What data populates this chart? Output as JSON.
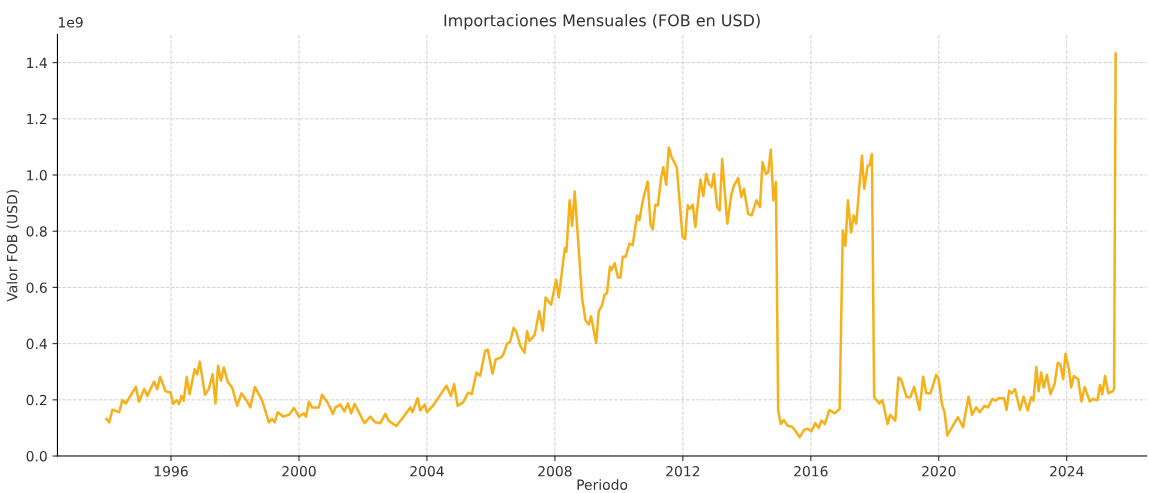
{
  "chart_data": {
    "type": "line",
    "title": "Importaciones Mensuales (FOB en USD)",
    "xlabel": "Periodo",
    "ylabel": "Valor FOB (USD)",
    "annotations": [
      "1e9"
    ],
    "x": [
      1993.98,
      1994.07,
      1994.17,
      1994.38,
      1994.48,
      1994.59,
      1994.9,
      1995.0,
      1995.16,
      1995.26,
      1995.47,
      1995.57,
      1995.66,
      1995.83,
      1995.99,
      1996.06,
      1996.17,
      1996.25,
      1996.33,
      1996.4,
      1996.49,
      1996.58,
      1996.74,
      1996.82,
      1996.9,
      1997.06,
      1997.18,
      1997.3,
      1997.39,
      1997.47,
      1997.56,
      1997.65,
      1997.78,
      1997.91,
      1998.07,
      1998.2,
      1998.33,
      1998.48,
      1998.62,
      1998.85,
      1999.06,
      1999.16,
      1999.24,
      1999.34,
      1999.51,
      1999.69,
      1999.84,
      2000.0,
      2000.15,
      2000.22,
      2000.31,
      2000.41,
      2000.62,
      2000.72,
      2000.91,
      2001.06,
      2001.14,
      2001.29,
      2001.42,
      2001.53,
      2001.63,
      2001.74,
      2001.87,
      2002.05,
      2002.23,
      2002.38,
      2002.54,
      2002.7,
      2002.8,
      2003.04,
      2003.16,
      2003.27,
      2003.48,
      2003.55,
      2003.71,
      2003.79,
      2003.93,
      2004.0,
      2004.19,
      2004.45,
      2004.61,
      2004.75,
      2004.85,
      2004.96,
      2005.13,
      2005.29,
      2005.4,
      2005.55,
      2005.66,
      2005.82,
      2005.9,
      2006.05,
      2006.15,
      2006.31,
      2006.39,
      2006.5,
      2006.6,
      2006.71,
      2006.79,
      2006.92,
      2007.05,
      2007.13,
      2007.21,
      2007.37,
      2007.51,
      2007.62,
      2007.71,
      2007.88,
      2008.04,
      2008.12,
      2008.31,
      2008.36,
      2008.46,
      2008.54,
      2008.62,
      2008.85,
      2008.96,
      2009.06,
      2009.13,
      2009.29,
      2009.37,
      2009.48,
      2009.55,
      2009.63,
      2009.72,
      2009.77,
      2009.87,
      2009.97,
      2010.05,
      2010.12,
      2010.21,
      2010.33,
      2010.43,
      2010.57,
      2010.64,
      2010.74,
      2010.9,
      2010.99,
      2011.06,
      2011.14,
      2011.22,
      2011.32,
      2011.39,
      2011.48,
      2011.56,
      2011.65,
      2011.81,
      2011.99,
      2012.07,
      2012.15,
      2012.22,
      2012.31,
      2012.39,
      2012.55,
      2012.64,
      2012.73,
      2012.81,
      2012.9,
      2012.97,
      2013.07,
      2013.15,
      2013.23,
      2013.39,
      2013.52,
      2013.6,
      2013.73,
      2013.83,
      2013.91,
      2014.04,
      2014.15,
      2014.3,
      2014.41,
      2014.49,
      2014.6,
      2014.67,
      2014.75,
      2014.83,
      2014.91,
      2014.98,
      2015.06,
      2015.16,
      2015.27,
      2015.41,
      2015.51,
      2015.65,
      2015.79,
      2015.9,
      2016.02,
      2016.14,
      2016.25,
      2016.33,
      2016.44,
      2016.58,
      2016.74,
      2016.9,
      2017.0,
      2017.08,
      2017.16,
      2017.26,
      2017.34,
      2017.42,
      2017.6,
      2017.67,
      2017.78,
      2017.84,
      2017.91,
      2017.98,
      2018.14,
      2018.24,
      2018.4,
      2018.48,
      2018.64,
      2018.74,
      2018.82,
      2019.0,
      2019.11,
      2019.23,
      2019.4,
      2019.51,
      2019.61,
      2019.74,
      2019.92,
      2020.0,
      2020.1,
      2020.18,
      2020.27,
      2020.44,
      2020.6,
      2020.76,
      2020.93,
      2021.04,
      2021.17,
      2021.28,
      2021.43,
      2021.54,
      2021.67,
      2021.77,
      2021.88,
      2022.04,
      2022.12,
      2022.2,
      2022.28,
      2022.38,
      2022.54,
      2022.65,
      2022.78,
      2022.89,
      2022.96,
      2023.05,
      2023.12,
      2023.2,
      2023.28,
      2023.38,
      2023.49,
      2023.62,
      2023.72,
      2023.8,
      2023.89,
      2023.96,
      2024.07,
      2024.14,
      2024.22,
      2024.36,
      2024.46,
      2024.56,
      2024.72,
      2024.82,
      2024.96,
      2025.04,
      2025.11,
      2025.2,
      2025.3,
      2025.43,
      2025.48,
      2025.53
    ],
    "series": [
      {
        "color": "#f5b01a",
        "values": [
          0.132,
          0.12,
          0.165,
          0.156,
          0.199,
          0.187,
          0.246,
          0.193,
          0.238,
          0.214,
          0.265,
          0.238,
          0.282,
          0.23,
          0.226,
          0.185,
          0.199,
          0.185,
          0.214,
          0.197,
          0.282,
          0.22,
          0.309,
          0.291,
          0.336,
          0.218,
          0.238,
          0.291,
          0.187,
          0.321,
          0.268,
          0.315,
          0.262,
          0.244,
          0.179,
          0.223,
          0.203,
          0.173,
          0.246,
          0.197,
          0.12,
          0.132,
          0.12,
          0.156,
          0.14,
          0.147,
          0.171,
          0.14,
          0.152,
          0.14,
          0.193,
          0.173,
          0.173,
          0.218,
          0.187,
          0.15,
          0.173,
          0.183,
          0.159,
          0.187,
          0.152,
          0.185,
          0.156,
          0.117,
          0.14,
          0.12,
          0.117,
          0.15,
          0.126,
          0.107,
          0.124,
          0.14,
          0.173,
          0.156,
          0.206,
          0.162,
          0.183,
          0.156,
          0.179,
          0.223,
          0.25,
          0.214,
          0.256,
          0.179,
          0.191,
          0.226,
          0.22,
          0.297,
          0.285,
          0.374,
          0.379,
          0.293,
          0.344,
          0.35,
          0.362,
          0.399,
          0.406,
          0.456,
          0.444,
          0.391,
          0.368,
          0.444,
          0.409,
          0.432,
          0.515,
          0.446,
          0.564,
          0.538,
          0.627,
          0.564,
          0.739,
          0.727,
          0.91,
          0.819,
          0.941,
          0.562,
          0.482,
          0.468,
          0.497,
          0.403,
          0.515,
          0.538,
          0.574,
          0.58,
          0.674,
          0.662,
          0.686,
          0.635,
          0.635,
          0.709,
          0.709,
          0.756,
          0.75,
          0.856,
          0.839,
          0.904,
          0.977,
          0.824,
          0.807,
          0.894,
          0.892,
          0.989,
          1.028,
          0.965,
          1.098,
          1.063,
          1.028,
          0.78,
          0.772,
          0.892,
          0.88,
          0.894,
          0.815,
          0.984,
          0.925,
          1.004,
          0.969,
          0.957,
          1.004,
          0.886,
          0.874,
          1.057,
          0.827,
          0.933,
          0.963,
          0.989,
          0.922,
          0.951,
          0.862,
          0.856,
          0.91,
          0.886,
          1.045,
          1.004,
          1.01,
          1.09,
          0.91,
          0.975,
          0.162,
          0.114,
          0.128,
          0.108,
          0.105,
          0.091,
          0.067,
          0.093,
          0.097,
          0.088,
          0.117,
          0.1,
          0.126,
          0.114,
          0.164,
          0.152,
          0.167,
          0.803,
          0.748,
          0.91,
          0.795,
          0.856,
          0.827,
          1.069,
          0.951,
          1.033,
          1.036,
          1.075,
          0.209,
          0.187,
          0.199,
          0.114,
          0.147,
          0.126,
          0.279,
          0.273,
          0.209,
          0.209,
          0.246,
          0.164,
          0.282,
          0.223,
          0.223,
          0.289,
          0.273,
          0.185,
          0.156,
          0.073,
          0.108,
          0.138,
          0.103,
          0.211,
          0.147,
          0.173,
          0.156,
          0.179,
          0.173,
          0.203,
          0.197,
          0.206,
          0.206,
          0.164,
          0.232,
          0.223,
          0.238,
          0.164,
          0.211,
          0.162,
          0.209,
          0.197,
          0.317,
          0.23,
          0.297,
          0.244,
          0.289,
          0.22,
          0.256,
          0.332,
          0.326,
          0.273,
          0.364,
          0.309,
          0.244,
          0.285,
          0.273,
          0.194,
          0.246,
          0.194,
          0.203,
          0.199,
          0.253,
          0.22,
          0.285,
          0.223,
          0.23,
          0.238,
          1.432
        ]
      }
    ],
    "xlim": [
      1992.45,
      2026.5
    ],
    "xticks": [
      1996,
      2000,
      2004,
      2008,
      2012,
      2016,
      2020,
      2024
    ],
    "ylim": [
      0,
      1.5
    ],
    "yticks": [
      {
        "value": 0,
        "label": "0.0"
      },
      0.2,
      0.4,
      0.6,
      0.8,
      {
        "value": 1,
        "label": "1.0"
      },
      1.2,
      1.4
    ],
    "grid": true,
    "line_style": "solid",
    "marker": "none"
  }
}
